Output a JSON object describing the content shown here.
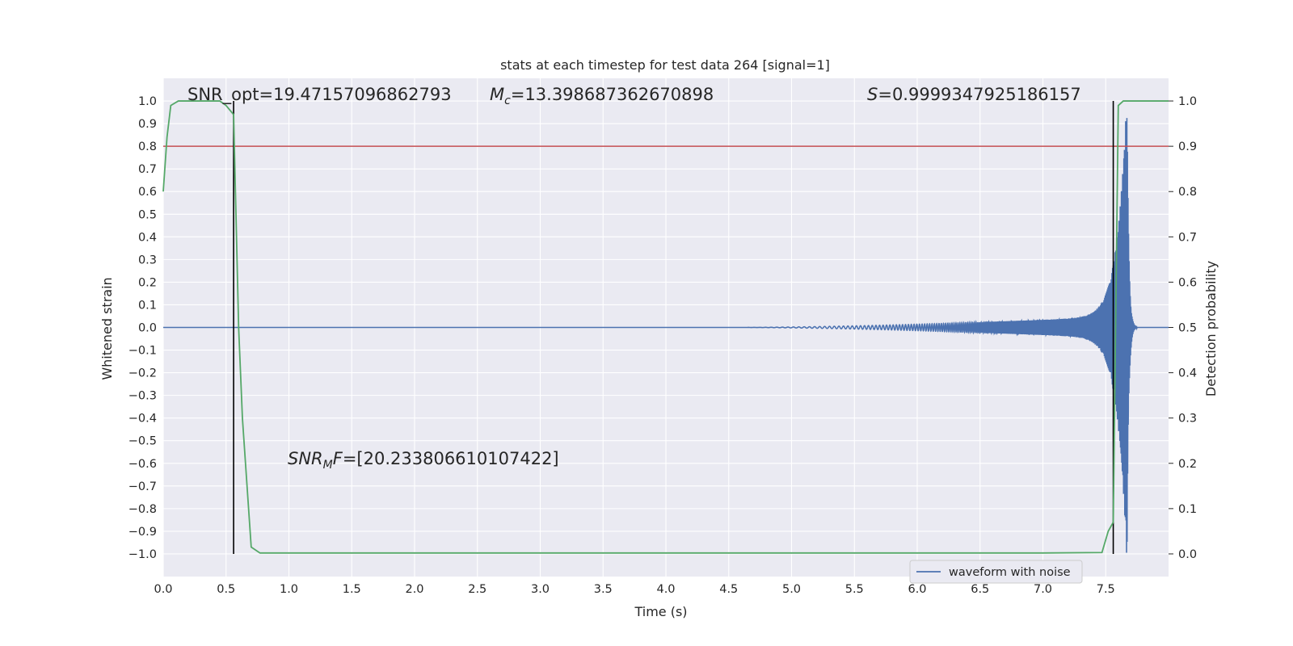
{
  "chart_data": {
    "type": "line",
    "title": "stats at each timestep for test data 264 [signal=1]",
    "xlabel": "Time (s)",
    "ylabel": "Whitened strain",
    "y2label": "Detection probability",
    "xlim": [
      0.0,
      8.0
    ],
    "ylim": [
      -1.1,
      1.1
    ],
    "y2lim": [
      -0.05,
      1.05
    ],
    "xticks": [
      "0.0",
      "0.5",
      "1.0",
      "1.5",
      "2.0",
      "2.5",
      "3.0",
      "3.5",
      "4.0",
      "4.5",
      "5.0",
      "5.5",
      "6.0",
      "6.5",
      "7.0",
      "7.5"
    ],
    "yticks": [
      "1.0",
      "0.9",
      "0.8",
      "0.7",
      "0.6",
      "0.5",
      "0.4",
      "0.3",
      "0.2",
      "0.1",
      "0.0",
      "−0.1",
      "−0.2",
      "−0.3",
      "−0.4",
      "−0.5",
      "−0.6",
      "−0.7",
      "−0.8",
      "−0.9",
      "−1.0"
    ],
    "y2ticks": [
      "1.0",
      "0.9",
      "0.8",
      "0.7",
      "0.6",
      "0.5",
      "0.4",
      "0.3",
      "0.2",
      "0.1",
      "0.0"
    ],
    "grid": true,
    "legend": {
      "placement": "lower-right",
      "entries": [
        "waveform with noise"
      ]
    },
    "annotations": {
      "snr_opt": "SNR_opt=19.47157096862793",
      "mc_symbol": "M",
      "mc_sub": "c",
      "mc_value": "=13.398687362670898",
      "s_symbol": "S",
      "s_value": "=0.9999347925186157",
      "snrmf_symbol": "SNR",
      "snrmf_sub": "M",
      "snrmf_f": "F",
      "snrmf_value": "=[20.233806610107422]"
    },
    "threshold": {
      "axis": "y2",
      "value": 0.9,
      "color": "#c44e52"
    },
    "vlines": [
      0.56,
      7.56
    ],
    "waveform": {
      "name": "waveform with noise",
      "color": "#4c72b0",
      "chirp_start": 4.6,
      "merger_time": 7.67,
      "ringdown_end": 7.75
    },
    "probability": {
      "axis": "y2",
      "color": "#55a868",
      "x": [
        0.0,
        0.03,
        0.06,
        0.12,
        0.2,
        0.3,
        0.4,
        0.45,
        0.5,
        0.56,
        0.6,
        0.63,
        0.7,
        0.77,
        0.85,
        1.5,
        3.0,
        5.0,
        7.0,
        7.47,
        7.52,
        7.56,
        7.6,
        7.64,
        7.68,
        8.0
      ],
      "y": [
        0.8,
        0.92,
        0.99,
        1.0,
        1.0,
        1.0,
        1.0,
        1.0,
        0.99,
        0.97,
        0.5,
        0.3,
        0.015,
        0.002,
        0.002,
        0.002,
        0.002,
        0.002,
        0.002,
        0.003,
        0.05,
        0.07,
        0.99,
        1.0,
        1.0,
        1.0
      ]
    },
    "colors": {
      "background": "#eaeaf2",
      "grid": "#ffffff",
      "vline": "#000000",
      "text": "#262626"
    }
  }
}
